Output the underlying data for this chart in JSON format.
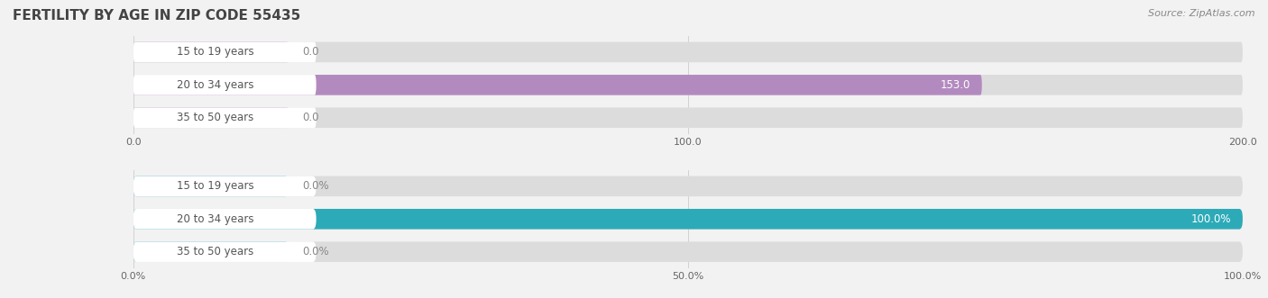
{
  "title": "FERTILITY BY AGE IN ZIP CODE 55435",
  "source": "Source: ZipAtlas.com",
  "top_chart": {
    "categories": [
      "15 to 19 years",
      "20 to 34 years",
      "35 to 50 years"
    ],
    "values": [
      0.0,
      153.0,
      0.0
    ],
    "xlim": [
      0,
      200
    ],
    "xticks": [
      0.0,
      100.0,
      200.0
    ],
    "xtick_labels": [
      "0.0",
      "100.0",
      "200.0"
    ],
    "bar_color": "#b38abf",
    "bar_bg_color": "#dcdcdc",
    "value_color_inside": "#ffffff",
    "value_color_outside": "#888888"
  },
  "bottom_chart": {
    "categories": [
      "15 to 19 years",
      "20 to 34 years",
      "35 to 50 years"
    ],
    "values": [
      0.0,
      100.0,
      0.0
    ],
    "xlim": [
      0,
      100
    ],
    "xticks": [
      0.0,
      50.0,
      100.0
    ],
    "xtick_labels": [
      "0.0%",
      "50.0%",
      "100.0%"
    ],
    "bar_color": "#2daab8",
    "bar_bg_color": "#dcdcdc",
    "value_color_inside": "#ffffff",
    "value_color_outside": "#888888"
  },
  "bg_color": "#f2f2f2",
  "label_bg_color": "#ffffff",
  "label_text_color": "#555555",
  "bar_height": 0.62,
  "bar_label_fontsize": 8.5,
  "category_fontsize": 8.5,
  "title_fontsize": 11,
  "source_fontsize": 8
}
